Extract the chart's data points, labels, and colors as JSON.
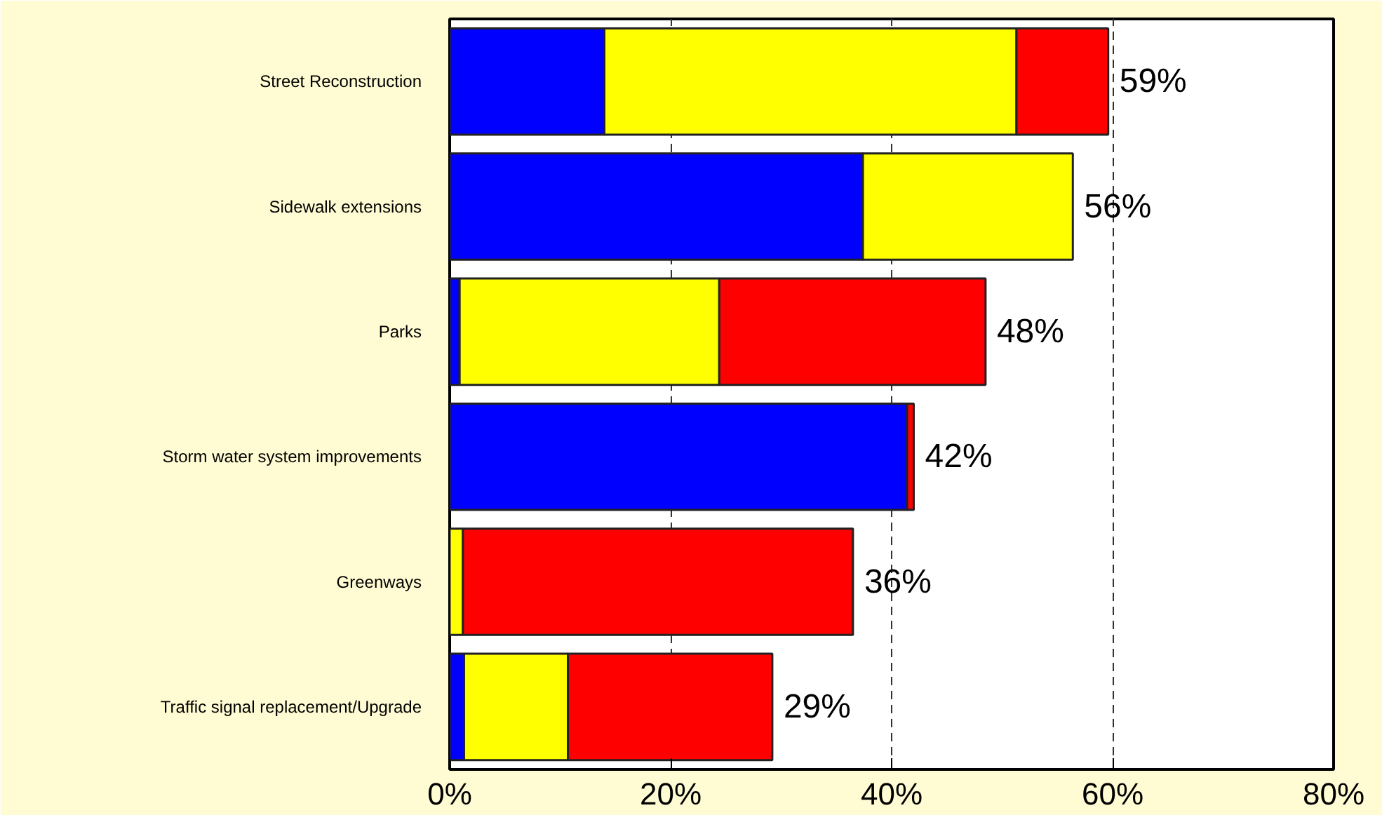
{
  "chart_data": {
    "type": "bar",
    "orientation": "horizontal",
    "stacked": true,
    "categories": [
      "Street Reconstruction",
      "Sidewalk extensions",
      "Parks",
      "Storm water system improvements",
      "Greenways",
      "Traffic signal replacement/Upgrade"
    ],
    "series": [
      {
        "color": "#0000ff",
        "values": [
          14,
          37.4,
          0.9,
          41.4,
          null,
          1.3
        ]
      },
      {
        "color": "#ffff00",
        "values": [
          37.3,
          19,
          23.5,
          null,
          1.2,
          9.4
        ]
      },
      {
        "color": "#ff0000",
        "values": [
          8.3,
          null,
          24.1,
          0.6,
          35.3,
          18.5
        ]
      }
    ],
    "totals": [
      "59%",
      "56%",
      "48%",
      "42%",
      "36%",
      "29%"
    ],
    "xlim": [
      0,
      80
    ],
    "xticks": [
      {
        "value": 0,
        "label": "0%"
      },
      {
        "value": 20,
        "label": "20%"
      },
      {
        "value": 40,
        "label": "40%"
      },
      {
        "value": 60,
        "label": "60%"
      },
      {
        "value": 80,
        "label": "80%"
      }
    ],
    "grid": "x"
  }
}
